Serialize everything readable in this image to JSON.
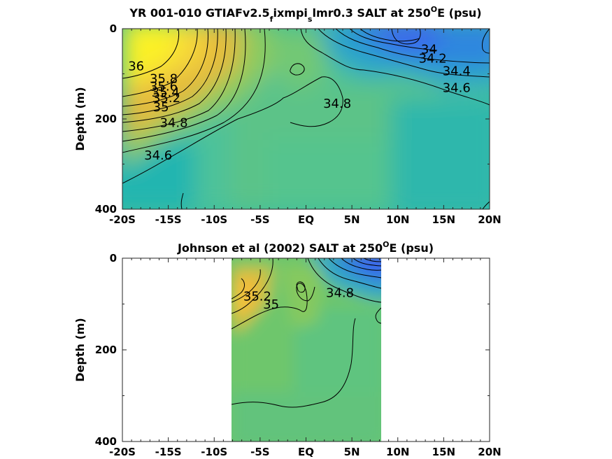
{
  "chart_data": [
    {
      "type": "contour",
      "title": "YR 001-010 GTIAFv2.5_fixmpi_slmr0.3 SALT at 250°E (psu)",
      "title_parts": {
        "pre": "YR 001-010 GTIAFv2.5",
        "sub1": "f",
        "mid": "ixmpi",
        "sub2": "s",
        "post": "lmr0.3 SALT at 250",
        "sup": "O",
        "end": "E (psu)"
      },
      "xlabel": "",
      "ylabel": "Depth (m)",
      "x_ticks": [
        "-20S",
        "-15S",
        "-10S",
        "-5S",
        "EQ",
        "5N",
        "10N",
        "15N",
        "20N"
      ],
      "x_tick_values": [
        -20,
        -15,
        -10,
        -5,
        0,
        5,
        10,
        15,
        20
      ],
      "y_ticks": [
        "0",
        "200",
        "400"
      ],
      "y_tick_values": [
        0,
        200,
        400
      ],
      "xlim": [
        -20,
        20
      ],
      "ylim": [
        0,
        400
      ],
      "data_extent_x": [
        -20,
        20
      ],
      "contour_labels": [
        {
          "text": "36",
          "lat": -18.5,
          "depth": 92
        },
        {
          "text": "35.8",
          "lat": -15.5,
          "depth": 120
        },
        {
          "text": "35.6",
          "lat": -15.5,
          "depth": 137
        },
        {
          "text": "35.4",
          "lat": -15.3,
          "depth": 150
        },
        {
          "text": "35.2",
          "lat": -15.2,
          "depth": 163
        },
        {
          "text": "35",
          "lat": -15.8,
          "depth": 183
        },
        {
          "text": "34.8",
          "lat": -14.4,
          "depth": 218
        },
        {
          "text": "34.6",
          "lat": -16.1,
          "depth": 290
        },
        {
          "text": "34.8",
          "lat": 3.4,
          "depth": 175
        },
        {
          "text": "34",
          "lat": 13.4,
          "depth": 55
        },
        {
          "text": "34.2",
          "lat": 13.8,
          "depth": 75
        },
        {
          "text": "34.4",
          "lat": 16.4,
          "depth": 103
        },
        {
          "text": "34.6",
          "lat": 16.4,
          "depth": 140
        }
      ]
    },
    {
      "type": "contour",
      "title": "Johnson et al (2002) SALT at 250°E (psu)",
      "title_parts": {
        "pre": "Johnson et al (2002) SALT at 250",
        "sup": "O",
        "end": "E (psu)"
      },
      "xlabel": "",
      "ylabel": "Depth (m)",
      "x_ticks": [
        "-20S",
        "-15S",
        "-10S",
        "-5S",
        "EQ",
        "5N",
        "10N",
        "15N",
        "20N"
      ],
      "x_tick_values": [
        -20,
        -15,
        -10,
        -5,
        0,
        5,
        10,
        15,
        20
      ],
      "y_ticks": [
        "0",
        "200",
        "400"
      ],
      "y_tick_values": [
        0,
        200,
        400
      ],
      "xlim": [
        -20,
        20
      ],
      "ylim": [
        0,
        400
      ],
      "data_extent_x": [
        -8,
        8.3
      ],
      "contour_labels": [
        {
          "text": "35.2",
          "lat": -5.3,
          "depth": 92
        },
        {
          "text": "35",
          "lat": -3.8,
          "depth": 110
        },
        {
          "text": "34.8",
          "lat": 3.7,
          "depth": 85
        }
      ]
    }
  ],
  "colors": {
    "low_salinity": "#3a66ee",
    "mid_salinity": "#5cc88c",
    "high_salinity": "#f2e234",
    "contour_line": "#000000"
  }
}
